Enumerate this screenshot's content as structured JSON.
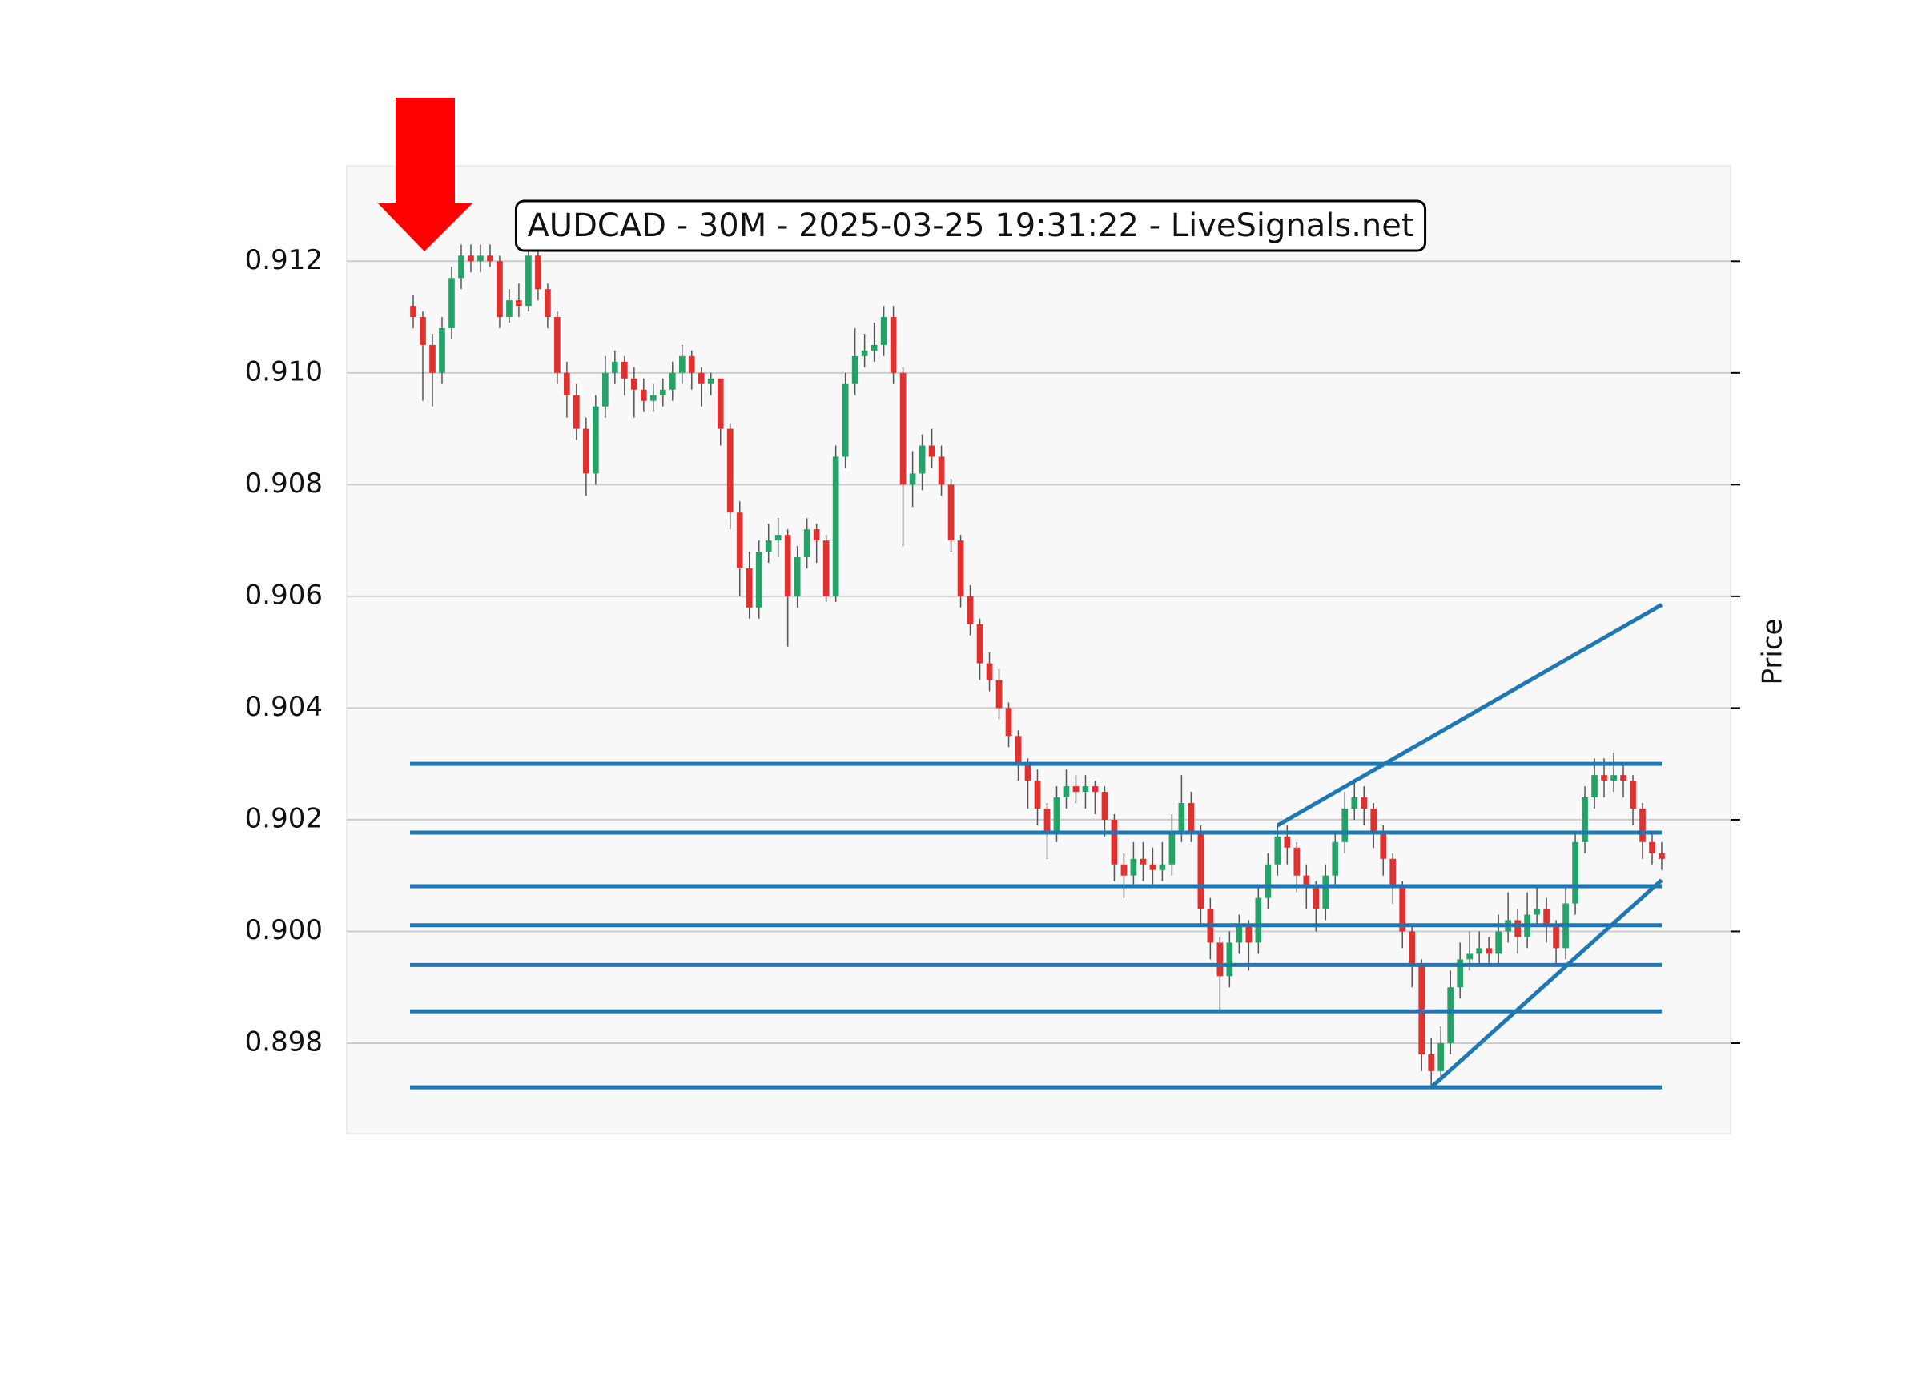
{
  "chart_data": {
    "type": "candlestick",
    "title": "AUDCAD - 30M - 2025-03-25 19:31:22 - LiveSignals.net",
    "y_label": "Price",
    "ylim": [
      0.89638,
      0.91371
    ],
    "yticks": [
      {
        "value": 0.898,
        "label": "0.898"
      },
      {
        "value": 0.9,
        "label": "0.900"
      },
      {
        "value": 0.902,
        "label": "0.902"
      },
      {
        "value": 0.904,
        "label": "0.904"
      },
      {
        "value": 0.906,
        "label": "0.906"
      },
      {
        "value": 0.908,
        "label": "0.908"
      },
      {
        "value": 0.91,
        "label": "0.910"
      },
      {
        "value": 0.912,
        "label": "0.912"
      }
    ],
    "grid": true,
    "up_color": "#26a269",
    "down_color": "#e03131",
    "line_color": "#1f77b4",
    "ohlc": [
      [
        0.9112,
        0.9114,
        0.9108,
        0.911
      ],
      [
        0.911,
        0.9111,
        0.9095,
        0.9105
      ],
      [
        0.9105,
        0.9107,
        0.9094,
        0.91
      ],
      [
        0.91,
        0.911,
        0.9098,
        0.9108
      ],
      [
        0.9108,
        0.9119,
        0.9106,
        0.9117
      ],
      [
        0.9117,
        0.9123,
        0.9115,
        0.9121
      ],
      [
        0.9121,
        0.9123,
        0.9118,
        0.912
      ],
      [
        0.912,
        0.9123,
        0.9118,
        0.9121
      ],
      [
        0.9121,
        0.9123,
        0.9119,
        0.912
      ],
      [
        0.912,
        0.9121,
        0.9108,
        0.911
      ],
      [
        0.911,
        0.9115,
        0.9109,
        0.9113
      ],
      [
        0.9113,
        0.9116,
        0.911,
        0.9112
      ],
      [
        0.9112,
        0.9123,
        0.9111,
        0.9121
      ],
      [
        0.9121,
        0.9122,
        0.9113,
        0.9115
      ],
      [
        0.9115,
        0.9116,
        0.9108,
        0.911
      ],
      [
        0.911,
        0.9111,
        0.9098,
        0.91
      ],
      [
        0.91,
        0.9102,
        0.9092,
        0.9096
      ],
      [
        0.9096,
        0.9098,
        0.9088,
        0.909
      ],
      [
        0.909,
        0.9092,
        0.9078,
        0.9082
      ],
      [
        0.9082,
        0.9096,
        0.908,
        0.9094
      ],
      [
        0.9094,
        0.9103,
        0.9092,
        0.91
      ],
      [
        0.91,
        0.9104,
        0.9098,
        0.9102
      ],
      [
        0.9102,
        0.9103,
        0.9096,
        0.9099
      ],
      [
        0.9099,
        0.9101,
        0.9092,
        0.9097
      ],
      [
        0.9097,
        0.9099,
        0.9093,
        0.9095
      ],
      [
        0.9095,
        0.9098,
        0.9093,
        0.9096
      ],
      [
        0.9096,
        0.9099,
        0.9094,
        0.9097
      ],
      [
        0.9097,
        0.9102,
        0.9095,
        0.91
      ],
      [
        0.91,
        0.9105,
        0.9098,
        0.9103
      ],
      [
        0.9103,
        0.9104,
        0.9097,
        0.91
      ],
      [
        0.91,
        0.9101,
        0.9094,
        0.9098
      ],
      [
        0.9098,
        0.91,
        0.9096,
        0.9099
      ],
      [
        0.9099,
        0.9099,
        0.9087,
        0.909
      ],
      [
        0.909,
        0.9091,
        0.9072,
        0.9075
      ],
      [
        0.9075,
        0.9077,
        0.906,
        0.9065
      ],
      [
        0.9065,
        0.9068,
        0.9056,
        0.9058
      ],
      [
        0.9058,
        0.907,
        0.9056,
        0.9068
      ],
      [
        0.9068,
        0.9073,
        0.9066,
        0.907
      ],
      [
        0.907,
        0.9074,
        0.9067,
        0.9071
      ],
      [
        0.9071,
        0.9072,
        0.9051,
        0.906
      ],
      [
        0.906,
        0.9069,
        0.9058,
        0.9067
      ],
      [
        0.9067,
        0.9074,
        0.9065,
        0.9072
      ],
      [
        0.9072,
        0.9073,
        0.9066,
        0.907
      ],
      [
        0.907,
        0.9071,
        0.9059,
        0.906
      ],
      [
        0.906,
        0.9087,
        0.9059,
        0.9085
      ],
      [
        0.9085,
        0.91,
        0.9083,
        0.9098
      ],
      [
        0.9098,
        0.9108,
        0.9096,
        0.9103
      ],
      [
        0.9103,
        0.9107,
        0.9101,
        0.9104
      ],
      [
        0.9104,
        0.9109,
        0.9102,
        0.9105
      ],
      [
        0.9105,
        0.9112,
        0.9103,
        0.911
      ],
      [
        0.911,
        0.9112,
        0.9098,
        0.91
      ],
      [
        0.91,
        0.9101,
        0.9069,
        0.908
      ],
      [
        0.908,
        0.9086,
        0.9076,
        0.9082
      ],
      [
        0.9082,
        0.9089,
        0.9079,
        0.9087
      ],
      [
        0.9087,
        0.909,
        0.9083,
        0.9085
      ],
      [
        0.9085,
        0.9087,
        0.9078,
        0.908
      ],
      [
        0.908,
        0.9081,
        0.9068,
        0.907
      ],
      [
        0.907,
        0.9071,
        0.9058,
        0.906
      ],
      [
        0.906,
        0.9062,
        0.9053,
        0.9055
      ],
      [
        0.9055,
        0.9056,
        0.9045,
        0.9048
      ],
      [
        0.9048,
        0.905,
        0.9043,
        0.9045
      ],
      [
        0.9045,
        0.9047,
        0.9038,
        0.904
      ],
      [
        0.904,
        0.9041,
        0.9033,
        0.9035
      ],
      [
        0.9035,
        0.9036,
        0.9027,
        0.903
      ],
      [
        0.903,
        0.9031,
        0.9022,
        0.9027
      ],
      [
        0.9027,
        0.9029,
        0.9019,
        0.9022
      ],
      [
        0.9022,
        0.9023,
        0.9013,
        0.9018
      ],
      [
        0.9018,
        0.9026,
        0.9016,
        0.9024
      ],
      [
        0.9024,
        0.9029,
        0.9022,
        0.9026
      ],
      [
        0.9026,
        0.9028,
        0.9023,
        0.9025
      ],
      [
        0.9025,
        0.9028,
        0.9022,
        0.9026
      ],
      [
        0.9026,
        0.9027,
        0.9021,
        0.9025
      ],
      [
        0.9025,
        0.9026,
        0.9017,
        0.902
      ],
      [
        0.902,
        0.9021,
        0.9009,
        0.9012
      ],
      [
        0.9012,
        0.9014,
        0.9006,
        0.901
      ],
      [
        0.901,
        0.9016,
        0.9008,
        0.9013
      ],
      [
        0.9013,
        0.9016,
        0.9009,
        0.9012
      ],
      [
        0.9012,
        0.9015,
        0.9008,
        0.9011
      ],
      [
        0.9011,
        0.9016,
        0.9009,
        0.9012
      ],
      [
        0.9012,
        0.9021,
        0.901,
        0.9018
      ],
      [
        0.9018,
        0.9028,
        0.9016,
        0.9023
      ],
      [
        0.9023,
        0.9025,
        0.9016,
        0.9018
      ],
      [
        0.9018,
        0.9019,
        0.9001,
        0.9004
      ],
      [
        0.9004,
        0.9006,
        0.8995,
        0.8998
      ],
      [
        0.8998,
        0.8999,
        0.8986,
        0.8992
      ],
      [
        0.8992,
        0.9,
        0.899,
        0.8998
      ],
      [
        0.8998,
        0.9003,
        0.8996,
        0.9001
      ],
      [
        0.9001,
        0.9002,
        0.8993,
        0.8998
      ],
      [
        0.8998,
        0.9008,
        0.8996,
        0.9006
      ],
      [
        0.9006,
        0.9014,
        0.9004,
        0.9012
      ],
      [
        0.9012,
        0.9019,
        0.901,
        0.9017
      ],
      [
        0.9017,
        0.9019,
        0.9012,
        0.9015
      ],
      [
        0.9015,
        0.9016,
        0.9007,
        0.901
      ],
      [
        0.901,
        0.9012,
        0.9004,
        0.9008
      ],
      [
        0.9008,
        0.9009,
        0.9,
        0.9004
      ],
      [
        0.9004,
        0.9012,
        0.9002,
        0.901
      ],
      [
        0.901,
        0.9018,
        0.9008,
        0.9016
      ],
      [
        0.9016,
        0.9025,
        0.9014,
        0.9022
      ],
      [
        0.9022,
        0.9027,
        0.902,
        0.9024
      ],
      [
        0.9024,
        0.9026,
        0.9019,
        0.9022
      ],
      [
        0.9022,
        0.9023,
        0.9015,
        0.9018
      ],
      [
        0.9018,
        0.9019,
        0.901,
        0.9013
      ],
      [
        0.9013,
        0.9014,
        0.9005,
        0.9008
      ],
      [
        0.9008,
        0.9009,
        0.8997,
        0.9
      ],
      [
        0.9,
        0.9001,
        0.899,
        0.8994
      ],
      [
        0.8994,
        0.8995,
        0.8975,
        0.8978
      ],
      [
        0.8978,
        0.8981,
        0.8972,
        0.8975
      ],
      [
        0.8975,
        0.8983,
        0.8973,
        0.898
      ],
      [
        0.898,
        0.8993,
        0.8978,
        0.899
      ],
      [
        0.899,
        0.8998,
        0.8988,
        0.8995
      ],
      [
        0.8995,
        0.9,
        0.8993,
        0.8996
      ],
      [
        0.8996,
        0.9,
        0.8994,
        0.8997
      ],
      [
        0.8997,
        0.8999,
        0.8994,
        0.8996
      ],
      [
        0.8996,
        0.9003,
        0.8994,
        0.9
      ],
      [
        0.9,
        0.9007,
        0.8998,
        0.9002
      ],
      [
        0.9002,
        0.9004,
        0.8996,
        0.8999
      ],
      [
        0.8999,
        0.9007,
        0.8997,
        0.9003
      ],
      [
        0.9003,
        0.9008,
        0.9001,
        0.9004
      ],
      [
        0.9004,
        0.9006,
        0.8998,
        0.9001
      ],
      [
        0.9001,
        0.9002,
        0.8994,
        0.8997
      ],
      [
        0.8997,
        0.9008,
        0.8995,
        0.9005
      ],
      [
        0.9005,
        0.9018,
        0.9003,
        0.9016
      ],
      [
        0.9016,
        0.9026,
        0.9014,
        0.9024
      ],
      [
        0.9024,
        0.9031,
        0.9022,
        0.9028
      ],
      [
        0.9028,
        0.9031,
        0.9024,
        0.9027
      ],
      [
        0.9027,
        0.9032,
        0.9025,
        0.9028
      ],
      [
        0.9028,
        0.903,
        0.9024,
        0.9027
      ],
      [
        0.9027,
        0.9028,
        0.9019,
        0.9022
      ],
      [
        0.9022,
        0.9023,
        0.9013,
        0.9016
      ],
      [
        0.9016,
        0.9018,
        0.9012,
        0.9014
      ],
      [
        0.9014,
        0.9016,
        0.9011,
        0.9013
      ]
    ],
    "levels": [
      0.903,
      0.90177,
      0.90081,
      0.90011,
      0.8994,
      0.89857,
      0.89721
    ],
    "trendlines": [
      {
        "x": [
          90,
          130
        ],
        "y": [
          0.9019,
          0.90585
        ]
      },
      {
        "x": [
          106,
          130
        ],
        "y": [
          0.89721,
          0.90092
        ]
      }
    ]
  }
}
